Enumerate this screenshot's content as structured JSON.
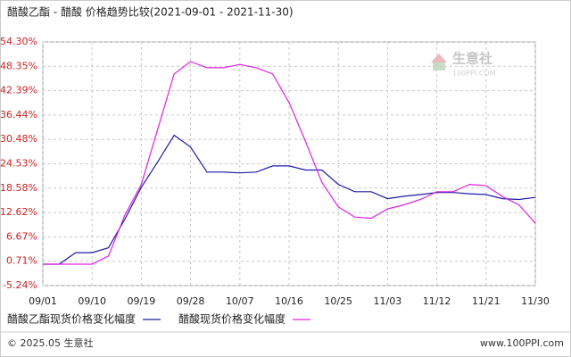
{
  "chart_data": {
    "type": "line",
    "title": "醋酸乙酯 - 醋酸 价格趋势比较(2021-09-01 - 2021-11-30)",
    "categories": [
      "09/01",
      null,
      null,
      "09/10",
      null,
      null,
      "09/19",
      null,
      null,
      "09/28",
      null,
      null,
      "10/07",
      null,
      null,
      "10/16",
      null,
      null,
      "10/25",
      null,
      null,
      "11/03",
      null,
      null,
      "11/12",
      null,
      null,
      "11/21",
      null,
      null,
      "11/30"
    ],
    "series": [
      {
        "name": "醋酸乙酯现货价格变化幅度",
        "color": "#1c1ca8",
        "values": [
          0,
          0,
          2.8,
          2.8,
          4,
          11,
          18.8,
          25,
          31.5,
          28.6,
          22.5,
          22.5,
          22.3,
          22.5,
          24,
          24,
          23,
          23,
          19.5,
          17.7,
          17.7,
          16,
          16.6,
          17,
          17.5,
          17.5,
          17.2,
          17,
          16,
          15.8,
          16.3
        ]
      },
      {
        "name": "醋酸现货价格变化幅度",
        "color": "#e020e0",
        "values": [
          0,
          0,
          0,
          0,
          2,
          12,
          19.5,
          33,
          46.5,
          49.5,
          48,
          48,
          48.8,
          48,
          46.5,
          39.5,
          30,
          20,
          14,
          11.5,
          11.2,
          13.5,
          14.5,
          15.8,
          17.7,
          17.7,
          19.5,
          19.2,
          16.5,
          14.5,
          10
        ]
      }
    ],
    "ylim": [
      -5.24,
      54.3
    ],
    "yticks": [
      {
        "value": 54.3,
        "label": "54.30%"
      },
      {
        "value": 48.35,
        "label": "48.35%"
      },
      {
        "value": 42.39,
        "label": "42.39%"
      },
      {
        "value": 36.44,
        "label": "36.44%"
      },
      {
        "value": 30.48,
        "label": "30.48%"
      },
      {
        "value": 24.53,
        "label": "24.53%"
      },
      {
        "value": 18.58,
        "label": "18.58%"
      },
      {
        "value": 12.62,
        "label": "12.62%"
      },
      {
        "value": 6.67,
        "label": "6.67%"
      },
      {
        "value": 0.71,
        "label": "0.71%"
      },
      {
        "value": -5.24,
        "label": "-5.24%"
      }
    ],
    "grid": true,
    "watermark": "生意社",
    "watermark_url": "100PPI.COM",
    "footer_left": "© 2025.05 生意社",
    "footer_right": "www.100PPI.com"
  }
}
